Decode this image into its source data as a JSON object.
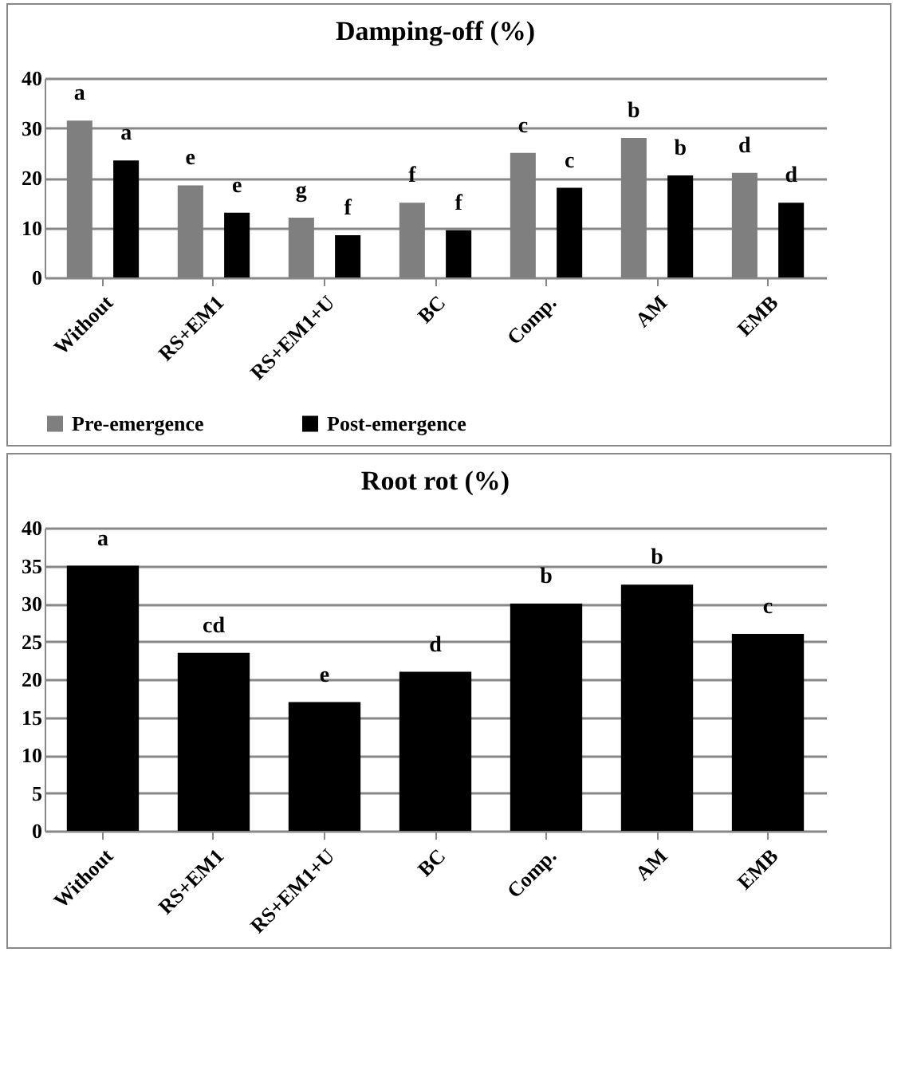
{
  "chart_data": [
    {
      "type": "bar",
      "title": "Damping-off (%)",
      "categories": [
        "Without",
        "RS+EM1",
        "RS+EM1+U",
        "BC",
        "Comp.",
        "AM",
        "EMB"
      ],
      "series": [
        {
          "name": "Pre-emergence",
          "color": "#7f7f7f",
          "values": [
            31.5,
            18.5,
            12,
            15,
            25,
            28,
            21
          ],
          "value_labels": [
            "a",
            "e",
            "g",
            "f",
            "c",
            "b",
            "d"
          ]
        },
        {
          "name": "Post-emergence",
          "color": "#000000",
          "values": [
            23.5,
            13,
            8.5,
            9.5,
            18,
            20.5,
            15
          ],
          "value_labels": [
            "a",
            "e",
            "f",
            "f",
            "c",
            "b",
            "d"
          ]
        }
      ],
      "ylim": [
        0,
        40
      ],
      "yticks": [
        0,
        10,
        20,
        30,
        40
      ],
      "grid": "y",
      "legend": "bottom"
    },
    {
      "type": "bar",
      "title": "Root rot (%)",
      "categories": [
        "Without",
        "RS+EM1",
        "RS+EM1+U",
        "BC",
        "Comp.",
        "AM",
        "EMB"
      ],
      "series": [
        {
          "color": "#000000",
          "values": [
            35,
            23.5,
            17,
            21,
            30,
            32.5,
            26
          ],
          "value_labels": [
            "a",
            "cd",
            "e",
            "d",
            "b",
            "b",
            "c"
          ]
        }
      ],
      "ylim": [
        0,
        40
      ],
      "yticks": [
        0,
        5,
        10,
        15,
        20,
        25,
        30,
        35,
        40
      ],
      "grid": "y"
    }
  ]
}
